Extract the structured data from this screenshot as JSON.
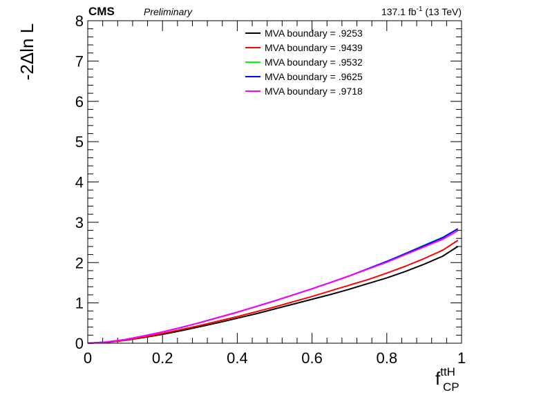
{
  "header": {
    "experiment": "CMS",
    "status": "Preliminary",
    "lumi_value": "137.1 fb",
    "lumi_exp": "-1",
    "lumi_energy": " (13 TeV)"
  },
  "axes": {
    "ylabel": "-2Δln L",
    "xlabel_main": "f",
    "xlabel_sup": "ttH",
    "xlabel_sub": "CP"
  },
  "chart_data": {
    "type": "line",
    "x": [
      0,
      0.05,
      0.1,
      0.15,
      0.2,
      0.25,
      0.3,
      0.35,
      0.4,
      0.45,
      0.5,
      0.55,
      0.6,
      0.65,
      0.7,
      0.75,
      0.8,
      0.85,
      0.9,
      0.95,
      0.99
    ],
    "series": [
      {
        "name": "MVA boundary = .9253",
        "color": "#000000",
        "values": [
          0,
          0.02,
          0.07,
          0.14,
          0.22,
          0.31,
          0.41,
          0.51,
          0.62,
          0.73,
          0.85,
          0.97,
          1.09,
          1.21,
          1.34,
          1.48,
          1.62,
          1.78,
          1.96,
          2.16,
          2.4
        ]
      },
      {
        "name": "MVA boundary = .9439",
        "color": "#ff0000",
        "values": [
          0,
          0.02,
          0.07,
          0.15,
          0.24,
          0.34,
          0.44,
          0.55,
          0.66,
          0.78,
          0.9,
          1.03,
          1.16,
          1.3,
          1.44,
          1.58,
          1.74,
          1.91,
          2.1,
          2.31,
          2.55
        ]
      },
      {
        "name": "MVA boundary = .9532",
        "color": "#00ff00",
        "values": [
          0,
          0.03,
          0.09,
          0.18,
          0.28,
          0.39,
          0.51,
          0.64,
          0.77,
          0.91,
          1.05,
          1.2,
          1.35,
          1.51,
          1.67,
          1.85,
          2.03,
          2.23,
          2.43,
          2.63,
          2.83
        ]
      },
      {
        "name": "MVA boundary = .9625",
        "color": "#0000ff",
        "values": [
          0,
          0.03,
          0.09,
          0.18,
          0.28,
          0.39,
          0.51,
          0.64,
          0.77,
          0.91,
          1.05,
          1.2,
          1.35,
          1.51,
          1.67,
          1.85,
          2.03,
          2.22,
          2.42,
          2.62,
          2.84
        ]
      },
      {
        "name": "MVA boundary = .9718",
        "color": "#ff00ff",
        "values": [
          0,
          0.03,
          0.09,
          0.18,
          0.28,
          0.39,
          0.51,
          0.64,
          0.77,
          0.91,
          1.05,
          1.2,
          1.35,
          1.51,
          1.67,
          1.84,
          2.01,
          2.2,
          2.39,
          2.58,
          2.79
        ]
      }
    ],
    "xlim": [
      0,
      1
    ],
    "ylim": [
      0,
      8
    ],
    "xticks": [
      "0",
      "0.2",
      "0.4",
      "0.6",
      "0.8",
      "1"
    ],
    "yticks": [
      "0",
      "1",
      "2",
      "3",
      "4",
      "5",
      "6",
      "7",
      "8"
    ],
    "grid": false,
    "legend": "top-center"
  }
}
